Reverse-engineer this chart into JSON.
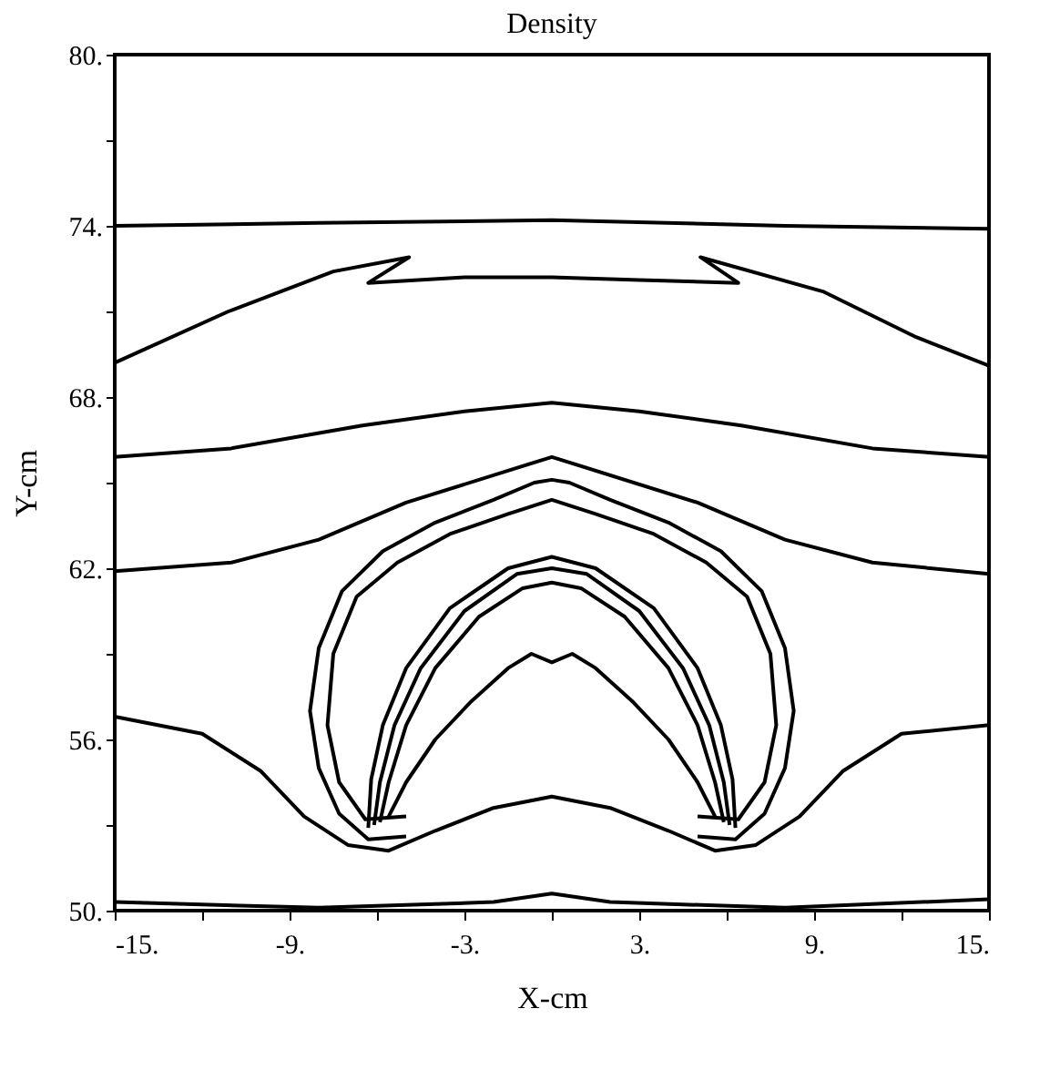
{
  "chart_data": {
    "type": "line",
    "title": "Density",
    "xlabel": "X-cm",
    "ylabel": "Y-cm",
    "xlim": [
      -15,
      15
    ],
    "ylim": [
      50,
      80
    ],
    "xticks": [
      {
        "value": -15,
        "label": "-15."
      },
      {
        "value": -12,
        "label": null
      },
      {
        "value": -9,
        "label": "-9."
      },
      {
        "value": -6,
        "label": null
      },
      {
        "value": -3,
        "label": "-3."
      },
      {
        "value": 0,
        "label": null
      },
      {
        "value": 3,
        "label": "3."
      },
      {
        "value": 6,
        "label": null
      },
      {
        "value": 9,
        "label": "9."
      },
      {
        "value": 12,
        "label": null
      },
      {
        "value": 15,
        "label": "15."
      }
    ],
    "yticks": [
      {
        "value": 50,
        "label": "50."
      },
      {
        "value": 53,
        "label": null
      },
      {
        "value": 56,
        "label": "56."
      },
      {
        "value": 59,
        "label": null
      },
      {
        "value": 62,
        "label": "62."
      },
      {
        "value": 65,
        "label": null
      },
      {
        "value": 68,
        "label": "68."
      },
      {
        "value": 71,
        "label": null
      },
      {
        "value": 74,
        "label": "74."
      },
      {
        "value": 77,
        "label": null
      },
      {
        "value": 80,
        "label": "80."
      }
    ],
    "grid": false,
    "legend": false,
    "marker": "none",
    "line_style": "solid",
    "series": [
      {
        "color": "#000000",
        "x": [
          -15,
          -8,
          0,
          8,
          15
        ],
        "values": [
          74.0,
          74.1,
          74.2,
          74.0,
          73.9
        ]
      },
      {
        "color": "#000000",
        "x": [
          -15,
          -11.1,
          -7.5,
          -4.9,
          -6.3,
          -3,
          0,
          3,
          6.4,
          5.1,
          9.3,
          12.5,
          15
        ],
        "values": [
          69.2,
          71.0,
          72.4,
          72.9,
          72.0,
          72.2,
          72.2,
          72.1,
          72.0,
          72.9,
          71.7,
          70.1,
          69.1
        ]
      },
      {
        "color": "#000000",
        "x": [
          -15,
          -11,
          -6.5,
          -3,
          0,
          3,
          6.5,
          11,
          15
        ],
        "values": [
          65.9,
          66.2,
          67.0,
          67.5,
          67.8,
          67.5,
          67.0,
          66.2,
          65.9
        ]
      },
      {
        "color": "#000000",
        "x": [
          -15,
          -11,
          -8,
          -5,
          0,
          5,
          8,
          11,
          15
        ],
        "values": [
          61.9,
          62.2,
          63.0,
          64.3,
          65.9,
          64.3,
          63.0,
          62.2,
          61.8
        ]
      },
      {
        "color": "#000000",
        "x": [
          -5.0,
          -6.3,
          -7.3,
          -8,
          -8.3,
          -8,
          -7.2,
          -5.8,
          -4,
          -2,
          -0.6,
          0,
          0.6,
          2,
          4,
          5.8,
          7.2,
          8,
          8.3,
          8,
          7.3,
          6.3,
          5.0
        ],
        "values": [
          52.6,
          52.5,
          53.4,
          55,
          57,
          59.2,
          61.2,
          62.6,
          63.6,
          64.4,
          65.0,
          65.1,
          65.0,
          64.4,
          63.6,
          62.6,
          61.2,
          59.2,
          57,
          55,
          53.4,
          52.5,
          52.6
        ]
      },
      {
        "color": "#000000",
        "x": [
          -5.0,
          -6.4,
          -7.3,
          -7.7,
          -7.5,
          -6.7,
          -5.3,
          -3.5,
          -1.5,
          0,
          1.5,
          3.5,
          5.3,
          6.7,
          7.5,
          7.7,
          7.3,
          6.4,
          5.0
        ],
        "values": [
          53.3,
          53.2,
          54.5,
          56.5,
          59,
          61,
          62.2,
          63.2,
          63.9,
          64.4,
          63.9,
          63.2,
          62.2,
          61,
          59,
          56.5,
          54.5,
          53.2,
          53.3
        ]
      },
      {
        "color": "#000000",
        "x": [
          -6.3,
          -6.2,
          -5.8,
          -5,
          -3.5,
          -1.5,
          0,
          1.5,
          3.5,
          5,
          5.8,
          6.2,
          6.3
        ],
        "values": [
          52.9,
          54.6,
          56.5,
          58.5,
          60.6,
          62,
          62.4,
          62,
          60.6,
          58.5,
          56.5,
          54.6,
          52.9
        ]
      },
      {
        "color": "#000000",
        "x": [
          -6.1,
          -5.9,
          -5.4,
          -4.5,
          -3,
          -1.2,
          0,
          1.2,
          3,
          4.5,
          5.4,
          5.9,
          6.1
        ],
        "values": [
          53,
          54.5,
          56.5,
          58.5,
          60.5,
          61.8,
          62.0,
          61.8,
          60.5,
          58.5,
          56.5,
          54.5,
          53
        ]
      },
      {
        "color": "#000000",
        "x": [
          -5.9,
          -5.6,
          -5,
          -4,
          -2.5,
          -1,
          0,
          1,
          2.5,
          4,
          5,
          5.6,
          5.9
        ],
        "values": [
          53.1,
          54.5,
          56.5,
          58.5,
          60.3,
          61.3,
          61.5,
          61.3,
          60.3,
          58.5,
          56.5,
          54.5,
          53.1
        ]
      },
      {
        "color": "#000000",
        "x": [
          -5.6,
          -5,
          -4,
          -2.8,
          -1.5,
          -0.7,
          0,
          0.7,
          1.5,
          2.8,
          4,
          5,
          5.6
        ],
        "values": [
          53.3,
          54.5,
          56,
          57.3,
          58.5,
          59.0,
          58.7,
          59.0,
          58.5,
          57.3,
          56,
          54.5,
          53.3
        ]
      },
      {
        "color": "#000000",
        "x": [
          -15,
          -12,
          -10,
          -8.5,
          -7,
          -5.6,
          -4,
          -2,
          0,
          2,
          4,
          5.6,
          7,
          8.5,
          10,
          12,
          15
        ],
        "values": [
          56.8,
          56.2,
          54.9,
          53.3,
          52.3,
          52.1,
          52.8,
          53.6,
          54.0,
          53.6,
          52.8,
          52.1,
          52.3,
          53.3,
          54.9,
          56.2,
          56.5
        ]
      },
      {
        "color": "#000000",
        "x": [
          -15,
          -8,
          -2,
          0,
          2,
          8,
          15
        ],
        "values": [
          50.3,
          50.1,
          50.3,
          50.6,
          50.3,
          50.1,
          50.4
        ]
      }
    ]
  }
}
